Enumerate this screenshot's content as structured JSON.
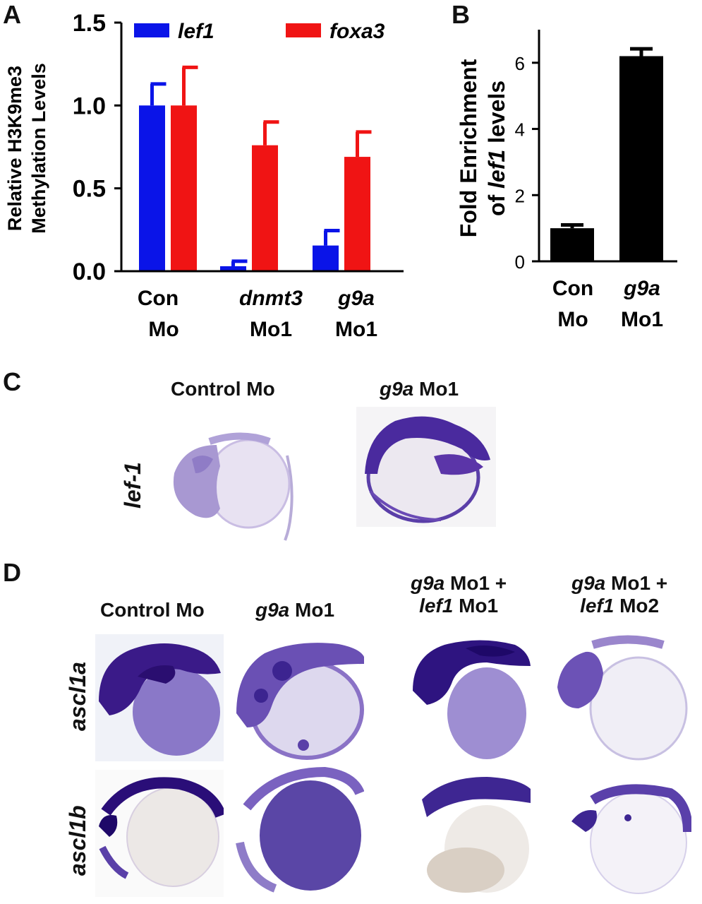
{
  "panels": {
    "a": "A",
    "b": "B",
    "c": "C",
    "d": "D"
  },
  "chart_data": [
    {
      "type": "bar",
      "ylabel": [
        "Relative H3K9me3",
        "Methylation Levels"
      ],
      "ylim": [
        0,
        1.5
      ],
      "yticks": [
        "0.0",
        "0.5",
        "1.0",
        "1.5"
      ],
      "ytick_values": [
        0,
        0.5,
        1.0,
        1.5
      ],
      "categories": [
        {
          "line1": "Con",
          "line1_italic": false,
          "line2": "Mo"
        },
        {
          "line1": "dnmt3",
          "line1_italic": true,
          "line2": "Mo1"
        },
        {
          "line1": "g9a",
          "line1_italic": true,
          "line2": "Mo1"
        }
      ],
      "series": [
        {
          "name": "lef1",
          "color": "#0a14e8",
          "values": [
            1.0,
            0.03,
            0.155
          ],
          "errors": [
            0.13,
            0.03,
            0.09
          ]
        },
        {
          "name": "foxa3",
          "color": "#f01414",
          "values": [
            1.0,
            0.76,
            0.69
          ],
          "errors": [
            0.23,
            0.14,
            0.15
          ]
        }
      ],
      "legend": "top"
    },
    {
      "type": "bar",
      "ylabel": [
        "Fold Enrichment",
        "of",
        "lef1",
        "levels"
      ],
      "ylim": [
        0,
        7
      ],
      "yticks": [
        "0",
        "2",
        "4",
        "6"
      ],
      "ytick_values": [
        0,
        2,
        4,
        6
      ],
      "categories": [
        {
          "line1": "Con",
          "line1_italic": false,
          "line2": "Mo"
        },
        {
          "line1": "g9a",
          "line1_italic": true,
          "line2": "Mo1"
        }
      ],
      "values": [
        1.0,
        6.2
      ],
      "errors": [
        0.1,
        0.22
      ],
      "color": "#000000"
    }
  ],
  "panel_c": {
    "col1": "Control Mo",
    "col2_italic": "g9a",
    "col2_rest": " Mo1",
    "row": "lef-1"
  },
  "panel_d": {
    "col1": "Control Mo",
    "col2_italic": "g9a",
    "col2_rest": " Mo1",
    "col3_l1_italic": "g9a",
    "col3_l1_rest": " Mo1 +",
    "col3_l2_italic": "lef1",
    "col3_l2_rest": " Mo1",
    "col4_l1_italic": "g9a",
    "col4_l1_rest": " Mo1 +",
    "col4_l2_italic": "lef1",
    "col4_l2_rest": " Mo2",
    "row1": "ascl1a",
    "row2": "ascl1b"
  }
}
